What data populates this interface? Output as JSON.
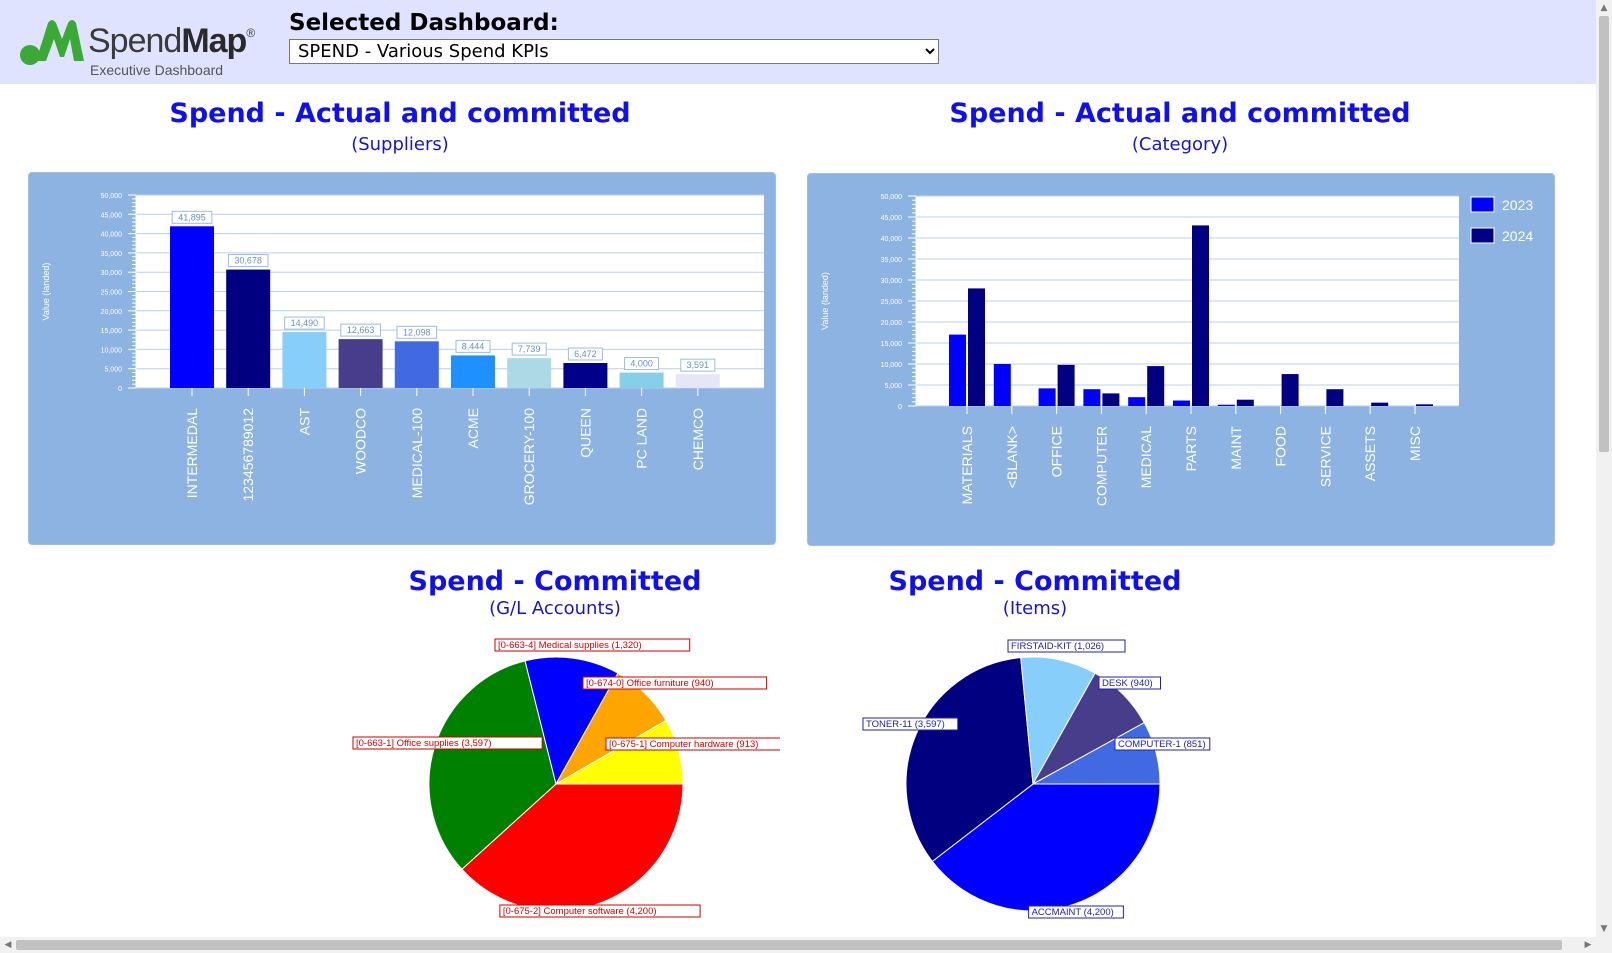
{
  "header": {
    "logo_word_regular": "Spend",
    "logo_word_bold": "Map",
    "logo_registered": "®",
    "logo_tagline": "Executive Dashboard",
    "selected_label": "Selected Dashboard:",
    "dashboard_select_value": "SPEND - Various Spend KPIs"
  },
  "colors": {
    "header_bg": "#dfe3ff",
    "title_blue": "#1010ee",
    "panel_bg": "#8db3e2",
    "logo_green": "#3aa935"
  },
  "charts": {
    "suppliers": {
      "title": "Spend - Actual and committed",
      "subtitle": "(Suppliers)"
    },
    "category": {
      "title": "Spend - Actual and committed",
      "subtitle": "(Category)"
    },
    "gl": {
      "title": "Spend - Committed",
      "subtitle": "(G/L Accounts)"
    },
    "items": {
      "title": "Spend - Committed",
      "subtitle": "(Items)"
    }
  },
  "chart_data": [
    {
      "type": "bar",
      "ylabel": "Value (landed)",
      "ylim": [
        0,
        50000
      ],
      "yticks": [
        "0",
        "5,000",
        "10,000",
        "15,000",
        "20,000",
        "25,000",
        "30,000",
        "35,000",
        "40,000",
        "45,000",
        "50,000"
      ],
      "categories": [
        "INTERMEDAL",
        "123456789012",
        "AST",
        "WOODCO",
        "MEDICAL-100",
        "ACME",
        "GROCERY-100",
        "QUEEN",
        "PC LAND",
        "CHEMCO"
      ],
      "values": [
        41895,
        30678,
        14490,
        12663,
        12098,
        8444,
        7739,
        6472,
        4000,
        3591
      ],
      "data_labels": [
        "41,895",
        "30,678",
        "14,490",
        "12,663",
        "12,098",
        "8,444",
        "7,739",
        "6,472",
        "4,000",
        "3,591"
      ],
      "colors": [
        "#0000ff",
        "#000080",
        "#87cefa",
        "#483d8b",
        "#4169e1",
        "#1e90ff",
        "#add8e6",
        "#00008b",
        "#87ceeb",
        "#e6e6fa"
      ],
      "grid": true
    },
    {
      "type": "bar",
      "ylabel": "Value (landed)",
      "ylim": [
        0,
        50000
      ],
      "yticks": [
        "0",
        "5,000",
        "10,000",
        "15,000",
        "20,000",
        "25,000",
        "30,000",
        "35,000",
        "40,000",
        "45,000",
        "50,000"
      ],
      "categories": [
        "MATERIALS",
        "<BLANK>",
        "OFFICE",
        "COMPUTER",
        "MEDICAL",
        "PARTS",
        "MAINT",
        "FOOD",
        "SERVICE",
        "ASSETS",
        "MISC"
      ],
      "series": [
        {
          "name": "2023",
          "color": "#0000ff",
          "values": [
            17000,
            10000,
            4200,
            4000,
            2100,
            1300,
            300,
            0,
            0,
            0,
            0
          ]
        },
        {
          "name": "2024",
          "color": "#000080",
          "values": [
            28000,
            0,
            9800,
            3000,
            9500,
            43000,
            1500,
            7600,
            4000,
            800,
            400
          ]
        }
      ],
      "legend_position": "top-right",
      "grid": true
    },
    {
      "type": "pie",
      "slices": [
        {
          "label": "[0-675-2] Computer software (4,200)",
          "value": 4200,
          "color": "#ff0000"
        },
        {
          "label": "[0-663-1] Office supplies (3,597)",
          "value": 3597,
          "color": "#008000"
        },
        {
          "label": "[0-663-4] Medical supplies (1,320)",
          "value": 1320,
          "color": "#0000ff"
        },
        {
          "label": "[0-674-0] Office furniture (940)",
          "value": 940,
          "color": "#ffa500"
        },
        {
          "label": "[0-675-1] Computer hardware (913)",
          "value": 913,
          "color": "#ffff00"
        }
      ],
      "label_color": "#cc0000"
    },
    {
      "type": "pie",
      "slices": [
        {
          "label": "ACCMAINT (4,200)",
          "value": 4200,
          "color": "#0000ff"
        },
        {
          "label": "TONER-11 (3,597)",
          "value": 3597,
          "color": "#000080"
        },
        {
          "label": "FIRSTAID-KIT (1,026)",
          "value": 1026,
          "color": "#87cefa"
        },
        {
          "label": "DESK (940)",
          "value": 940,
          "color": "#483d8b"
        },
        {
          "label": "COMPUTER-1 (851)",
          "value": 851,
          "color": "#4169e1"
        }
      ],
      "label_color": "#2020aa"
    }
  ]
}
